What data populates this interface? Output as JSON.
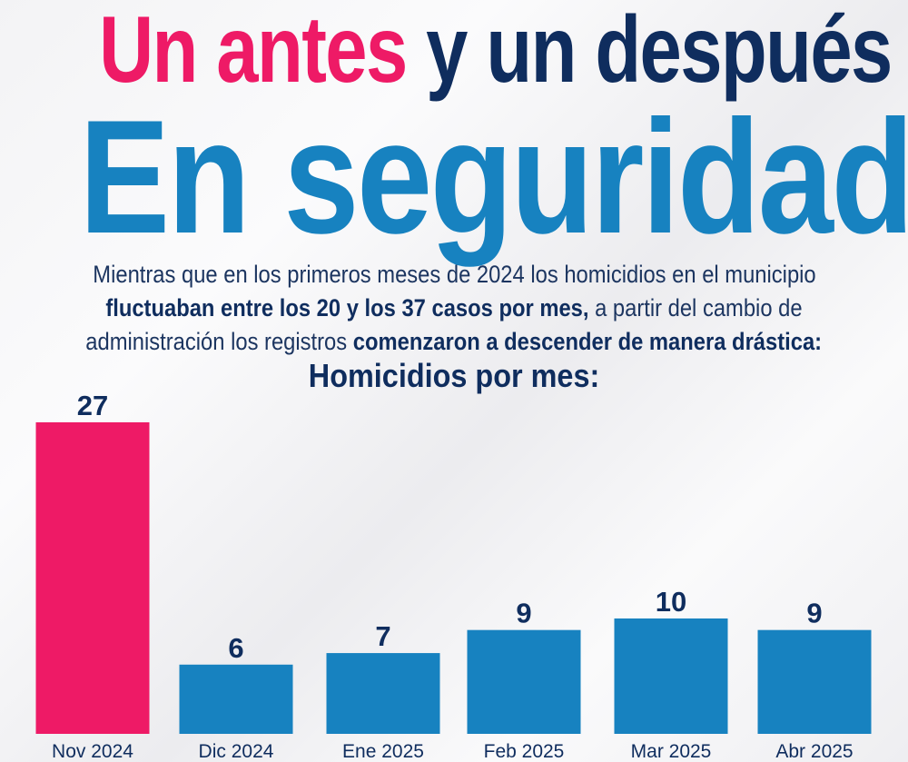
{
  "headline": {
    "part1": "Un antes",
    "part2": "y un después",
    "line2": "En seguridad"
  },
  "intro": {
    "l1": "Mientras que en los primeros meses de 2024 los homicidios en el municipio",
    "l2_bold": "fluctuaban entre los 20 y los 37 casos por mes,",
    "l2_rest": " a partir del cambio de",
    "l3_start": "administración los registros ",
    "l3_bold": "comenzaron a descender de manera drástica:"
  },
  "chart_data": {
    "type": "bar",
    "title": "Homicidios por mes:",
    "categories": [
      "Nov 2024",
      "Dic 2024",
      "Ene 2025",
      "Feb 2025",
      "Mar 2025",
      "Abr 2025"
    ],
    "values": [
      27,
      6,
      7,
      9,
      10,
      9
    ],
    "colors": [
      "#ee1a66",
      "#1782c0",
      "#1782c0",
      "#1782c0",
      "#1782c0",
      "#1782c0"
    ],
    "xlabel": "",
    "ylabel": "",
    "ylim": [
      0,
      27
    ],
    "grid": false
  }
}
